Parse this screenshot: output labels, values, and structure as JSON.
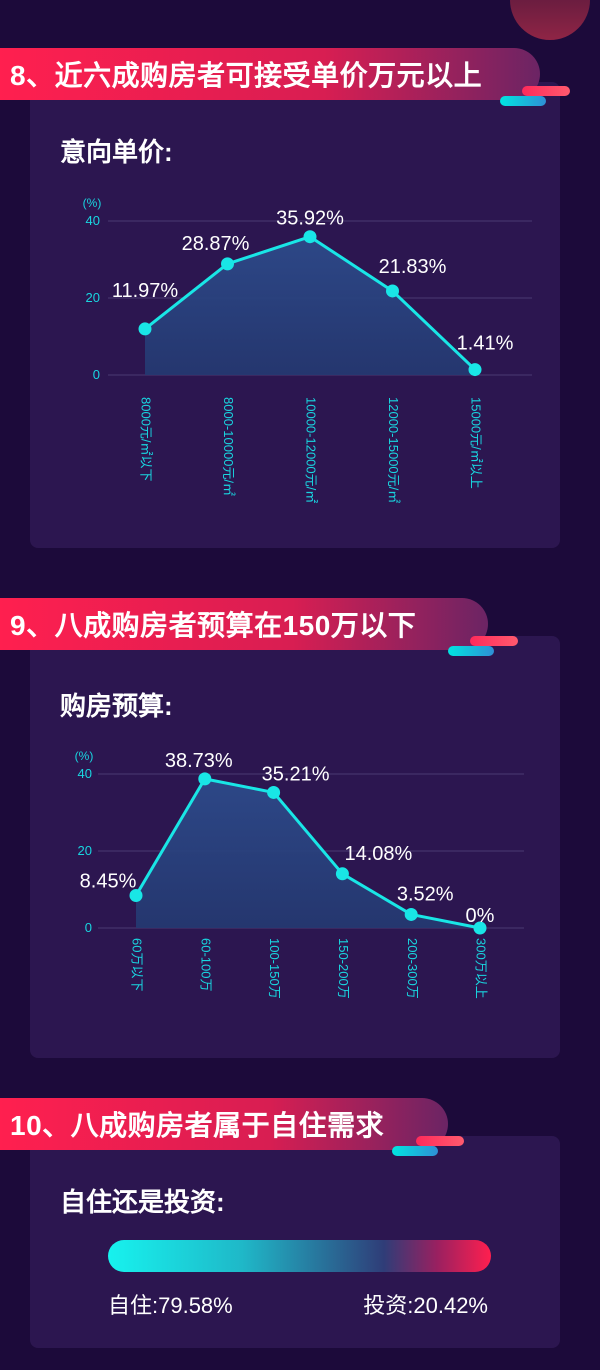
{
  "sections": [
    {
      "banner": "8、近六成购房者可接受单价万元以上",
      "card_title": "意向单价:",
      "chart_data": {
        "type": "area",
        "unit_label": "(%)",
        "categories": [
          "8000元/㎡以下",
          "8000-10000元/㎡",
          "10000-12000元/㎡",
          "12000-15000元/㎡",
          "15000元/㎡以上"
        ],
        "values": [
          11.97,
          28.87,
          35.92,
          21.83,
          1.41
        ],
        "value_labels": [
          "11.97%",
          "28.87%",
          "35.92%",
          "21.83%",
          "1.41%"
        ],
        "yticks": [
          0,
          20,
          40
        ],
        "ylim": [
          0,
          40
        ]
      }
    },
    {
      "banner": "9、八成购房者预算在150万以下",
      "card_title": "购房预算:",
      "chart_data": {
        "type": "area",
        "unit_label": "(%)",
        "categories": [
          "60万以下",
          "60-100万",
          "100-150万",
          "150-200万",
          "200-300万",
          "300万以上"
        ],
        "values": [
          8.45,
          38.73,
          35.21,
          14.08,
          3.52,
          0
        ],
        "value_labels": [
          "8.45%",
          "38.73%",
          "35.21%",
          "14.08%",
          "3.52%",
          "0%"
        ],
        "yticks": [
          0,
          20,
          40
        ],
        "ylim": [
          0,
          40
        ]
      }
    },
    {
      "banner": "10、八成购房者属于自住需求",
      "card_title": "自住还是投资:",
      "split": {
        "left_label": "自住:79.58%",
        "right_label": "投资:20.42%",
        "left_value": 79.58,
        "right_value": 20.42
      }
    }
  ],
  "colors": {
    "background": "#1c0a3a",
    "card": "#2c1650",
    "line": "#19e6e6",
    "area_top": "#2d4a8a",
    "area_bottom": "#243a72",
    "axis_text": "#19d6e0",
    "banner_red": "#ff1f4f"
  }
}
